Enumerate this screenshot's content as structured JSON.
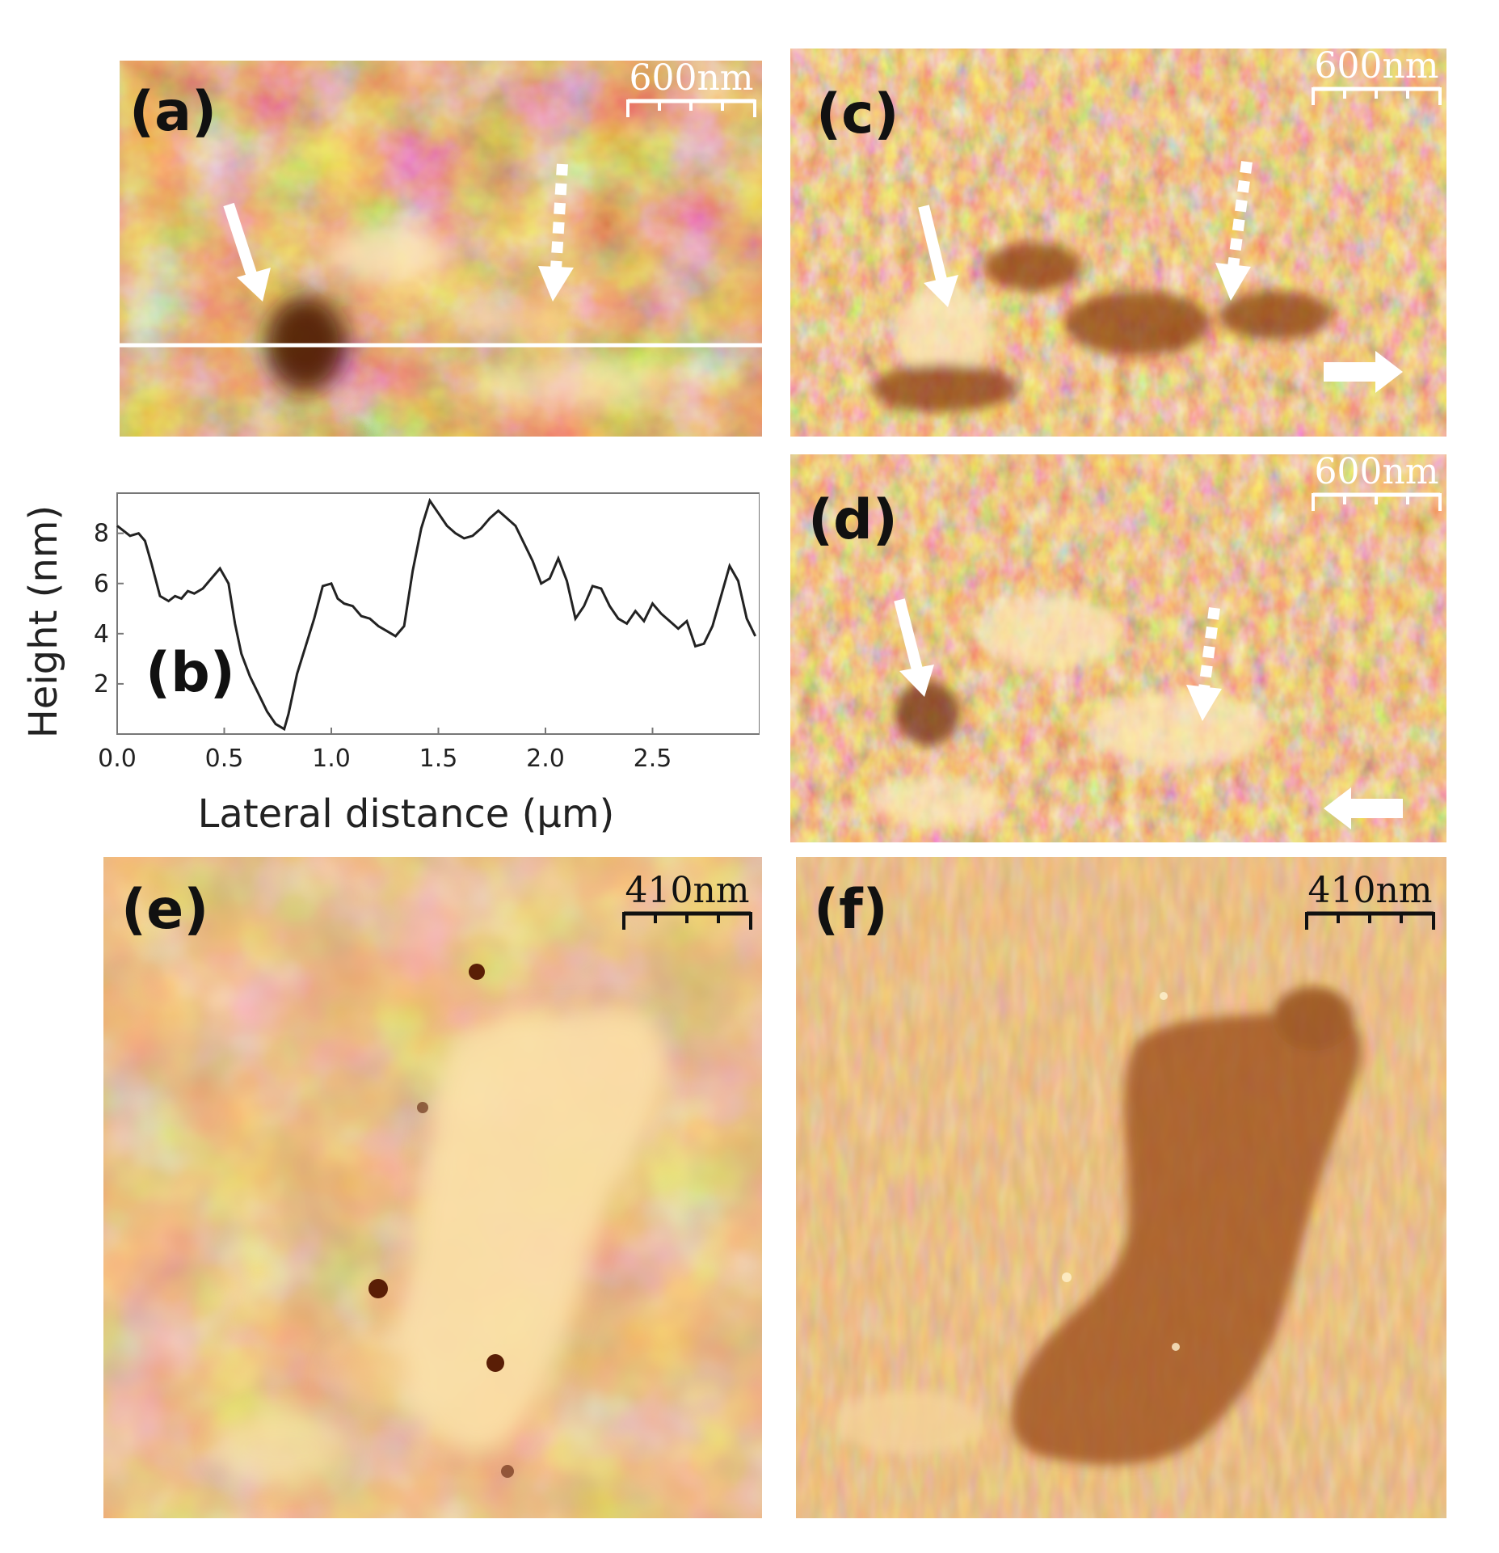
{
  "figure": {
    "panels": [
      {
        "id": "a",
        "label": "(a)",
        "scale_bar": "600nm",
        "type": "afm-height-image",
        "profile_line": true
      },
      {
        "id": "c",
        "label": "(c)",
        "scale_bar": "600nm",
        "type": "afm-phase-image",
        "scan_direction": "right"
      },
      {
        "id": "d",
        "label": "(d)",
        "scale_bar": "600nm",
        "type": "afm-phase-image",
        "scan_direction": "left"
      },
      {
        "id": "e",
        "label": "(e)",
        "scale_bar": "410nm",
        "type": "afm-height-image"
      },
      {
        "id": "f",
        "label": "(f)",
        "scale_bar": "410nm",
        "type": "afm-phase-image"
      }
    ],
    "colors": {
      "afm_dark": "#5a1e06",
      "afm_mid": "#c7772f",
      "afm_light": "#fde9bb",
      "annotation": "#ffffff",
      "plot_line": "#222222"
    }
  },
  "chart_data": {
    "type": "line",
    "label": "(b)",
    "xlabel": "Lateral distance (μm)",
    "ylabel": "Height (nm)",
    "xlim": [
      0.0,
      3.0
    ],
    "ylim": [
      0.0,
      9.6
    ],
    "xticks": [
      "0.0",
      "0.5",
      "1.0",
      "1.5",
      "2.0",
      "2.5"
    ],
    "yticks": [
      "2",
      "4",
      "6",
      "8"
    ],
    "grid": false,
    "series": [
      {
        "x": [
          0.0,
          0.03,
          0.06,
          0.1,
          0.13,
          0.16,
          0.2,
          0.24,
          0.27,
          0.3,
          0.33,
          0.36,
          0.4,
          0.44,
          0.48,
          0.52,
          0.55,
          0.58,
          0.62,
          0.66,
          0.7,
          0.74,
          0.78,
          0.8,
          0.84,
          0.88,
          0.92,
          0.96,
          1.0,
          1.03,
          1.06,
          1.1,
          1.14,
          1.18,
          1.22,
          1.26,
          1.3,
          1.34,
          1.38,
          1.42,
          1.46,
          1.5,
          1.54,
          1.58,
          1.62,
          1.66,
          1.7,
          1.74,
          1.78,
          1.82,
          1.86,
          1.9,
          1.94,
          1.98,
          2.02,
          2.06,
          2.1,
          2.14,
          2.18,
          2.22,
          2.26,
          2.3,
          2.34,
          2.38,
          2.42,
          2.46,
          2.5,
          2.54,
          2.58,
          2.62,
          2.66,
          2.7,
          2.74,
          2.78,
          2.82,
          2.86,
          2.9,
          2.94,
          2.98
        ],
        "y": [
          8.3,
          8.1,
          7.9,
          8.0,
          7.7,
          6.8,
          5.5,
          5.3,
          5.5,
          5.4,
          5.7,
          5.6,
          5.8,
          6.2,
          6.6,
          6.0,
          4.4,
          3.2,
          2.3,
          1.6,
          0.9,
          0.4,
          0.2,
          0.8,
          2.4,
          3.5,
          4.6,
          5.9,
          6.0,
          5.4,
          5.2,
          5.1,
          4.7,
          4.6,
          4.3,
          4.1,
          3.9,
          4.3,
          6.5,
          8.2,
          9.3,
          8.8,
          8.3,
          8.0,
          7.8,
          7.9,
          8.2,
          8.6,
          8.9,
          8.6,
          8.3,
          7.6,
          6.9,
          6.0,
          6.2,
          7.0,
          6.1,
          4.6,
          5.1,
          5.9,
          5.8,
          5.1,
          4.6,
          4.4,
          4.9,
          4.5,
          5.2,
          4.8,
          4.5,
          4.2,
          4.5,
          3.5,
          3.6,
          4.3,
          5.5,
          6.7,
          6.1,
          4.6,
          3.9
        ]
      }
    ]
  }
}
